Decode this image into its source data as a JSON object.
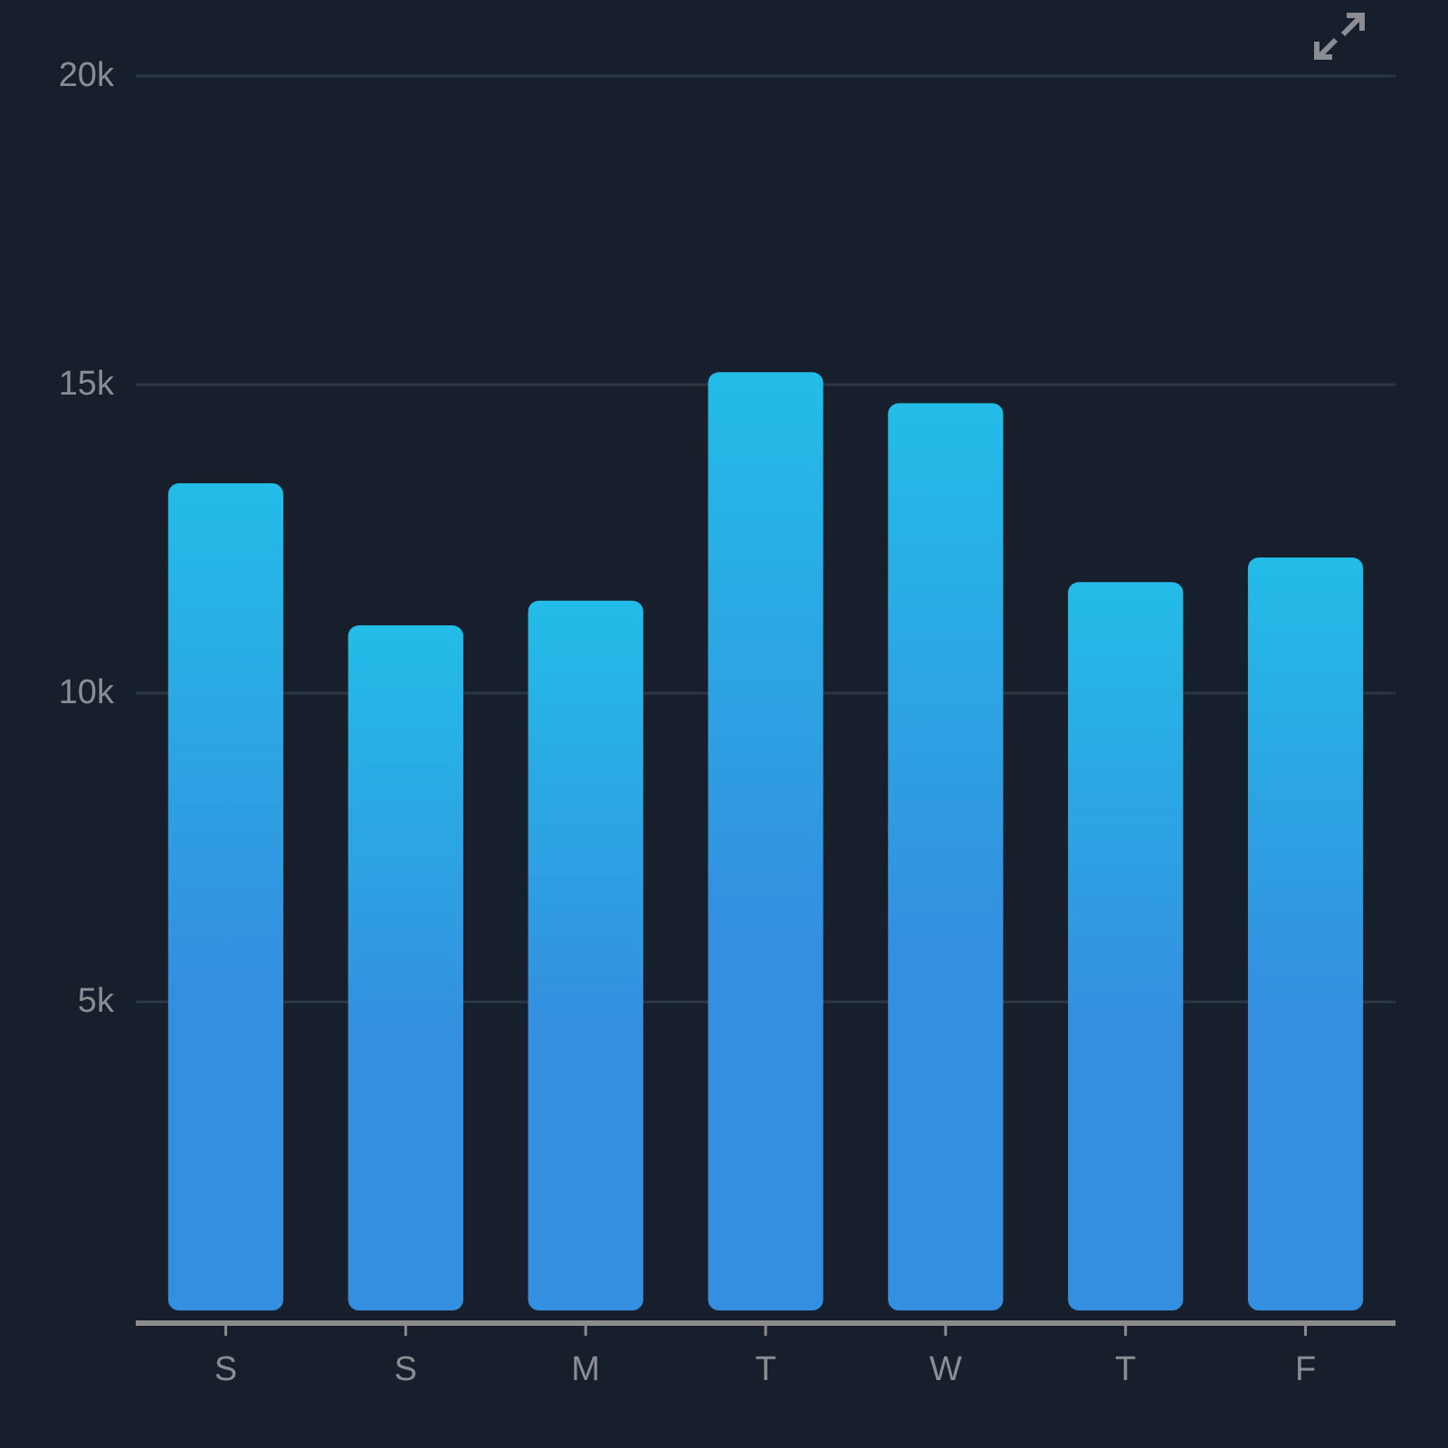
{
  "chart_data": {
    "type": "bar",
    "categories": [
      "S",
      "S",
      "M",
      "T",
      "W",
      "T",
      "F"
    ],
    "values": [
      13400,
      11100,
      11500,
      15200,
      14700,
      11800,
      12200
    ],
    "color": "#348fe0",
    "ylim": [
      0,
      20000
    ],
    "yticks": [
      {
        "value": 5000,
        "label": "5k"
      },
      {
        "value": 10000,
        "label": "10k"
      },
      {
        "value": 15000,
        "label": "15k"
      },
      {
        "value": 20000,
        "label": "20k"
      }
    ],
    "grid": "y"
  }
}
